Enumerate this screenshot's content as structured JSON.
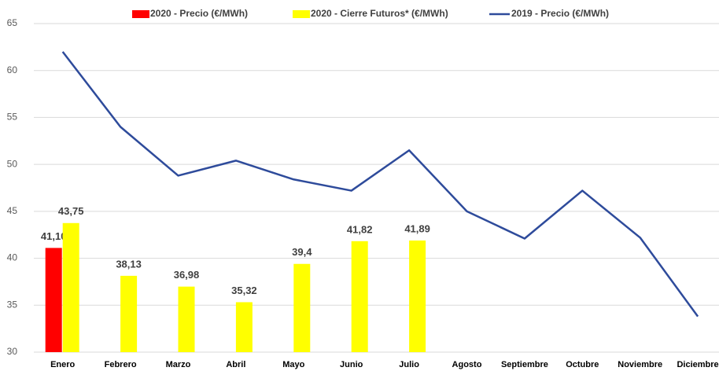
{
  "chart_data": {
    "type": "bar",
    "categories": [
      "Enero",
      "Febrero",
      "Marzo",
      "Abril",
      "Mayo",
      "Junio",
      "Julio",
      "Agosto",
      "Septiembre",
      "Octubre",
      "Noviembre",
      "Diciembre"
    ],
    "series": [
      {
        "name": "2020 - Precio (€/MWh)",
        "type": "bar",
        "color": "#ff0000",
        "values": [
          41.1,
          null,
          null,
          null,
          null,
          null,
          null,
          null,
          null,
          null,
          null,
          null
        ],
        "value_labels": [
          "41,10",
          null,
          null,
          null,
          null,
          null,
          null,
          null,
          null,
          null,
          null,
          null
        ]
      },
      {
        "name": "2020 - Cierre Futuros*  (€/MWh)",
        "type": "bar",
        "color": "#ffff00",
        "values": [
          43.75,
          38.13,
          36.98,
          35.32,
          39.4,
          41.82,
          41.89,
          null,
          null,
          null,
          null,
          null
        ],
        "value_labels": [
          "43,75",
          "38,13",
          "36,98",
          "35,32",
          "39,4",
          "41,82",
          "41,89",
          null,
          null,
          null,
          null,
          null
        ]
      },
      {
        "name": "2019 - Precio (€/MWh)",
        "type": "line",
        "color": "#2e4b9b",
        "values": [
          62,
          54,
          48.8,
          50.4,
          48.4,
          47.2,
          51.5,
          45,
          42.1,
          47.2,
          42.2,
          33.8
        ]
      }
    ],
    "ylim": [
      30,
      65
    ],
    "yticks": [
      30,
      35,
      40,
      45,
      50,
      55,
      60,
      65
    ],
    "grid": true,
    "legend": "top"
  }
}
